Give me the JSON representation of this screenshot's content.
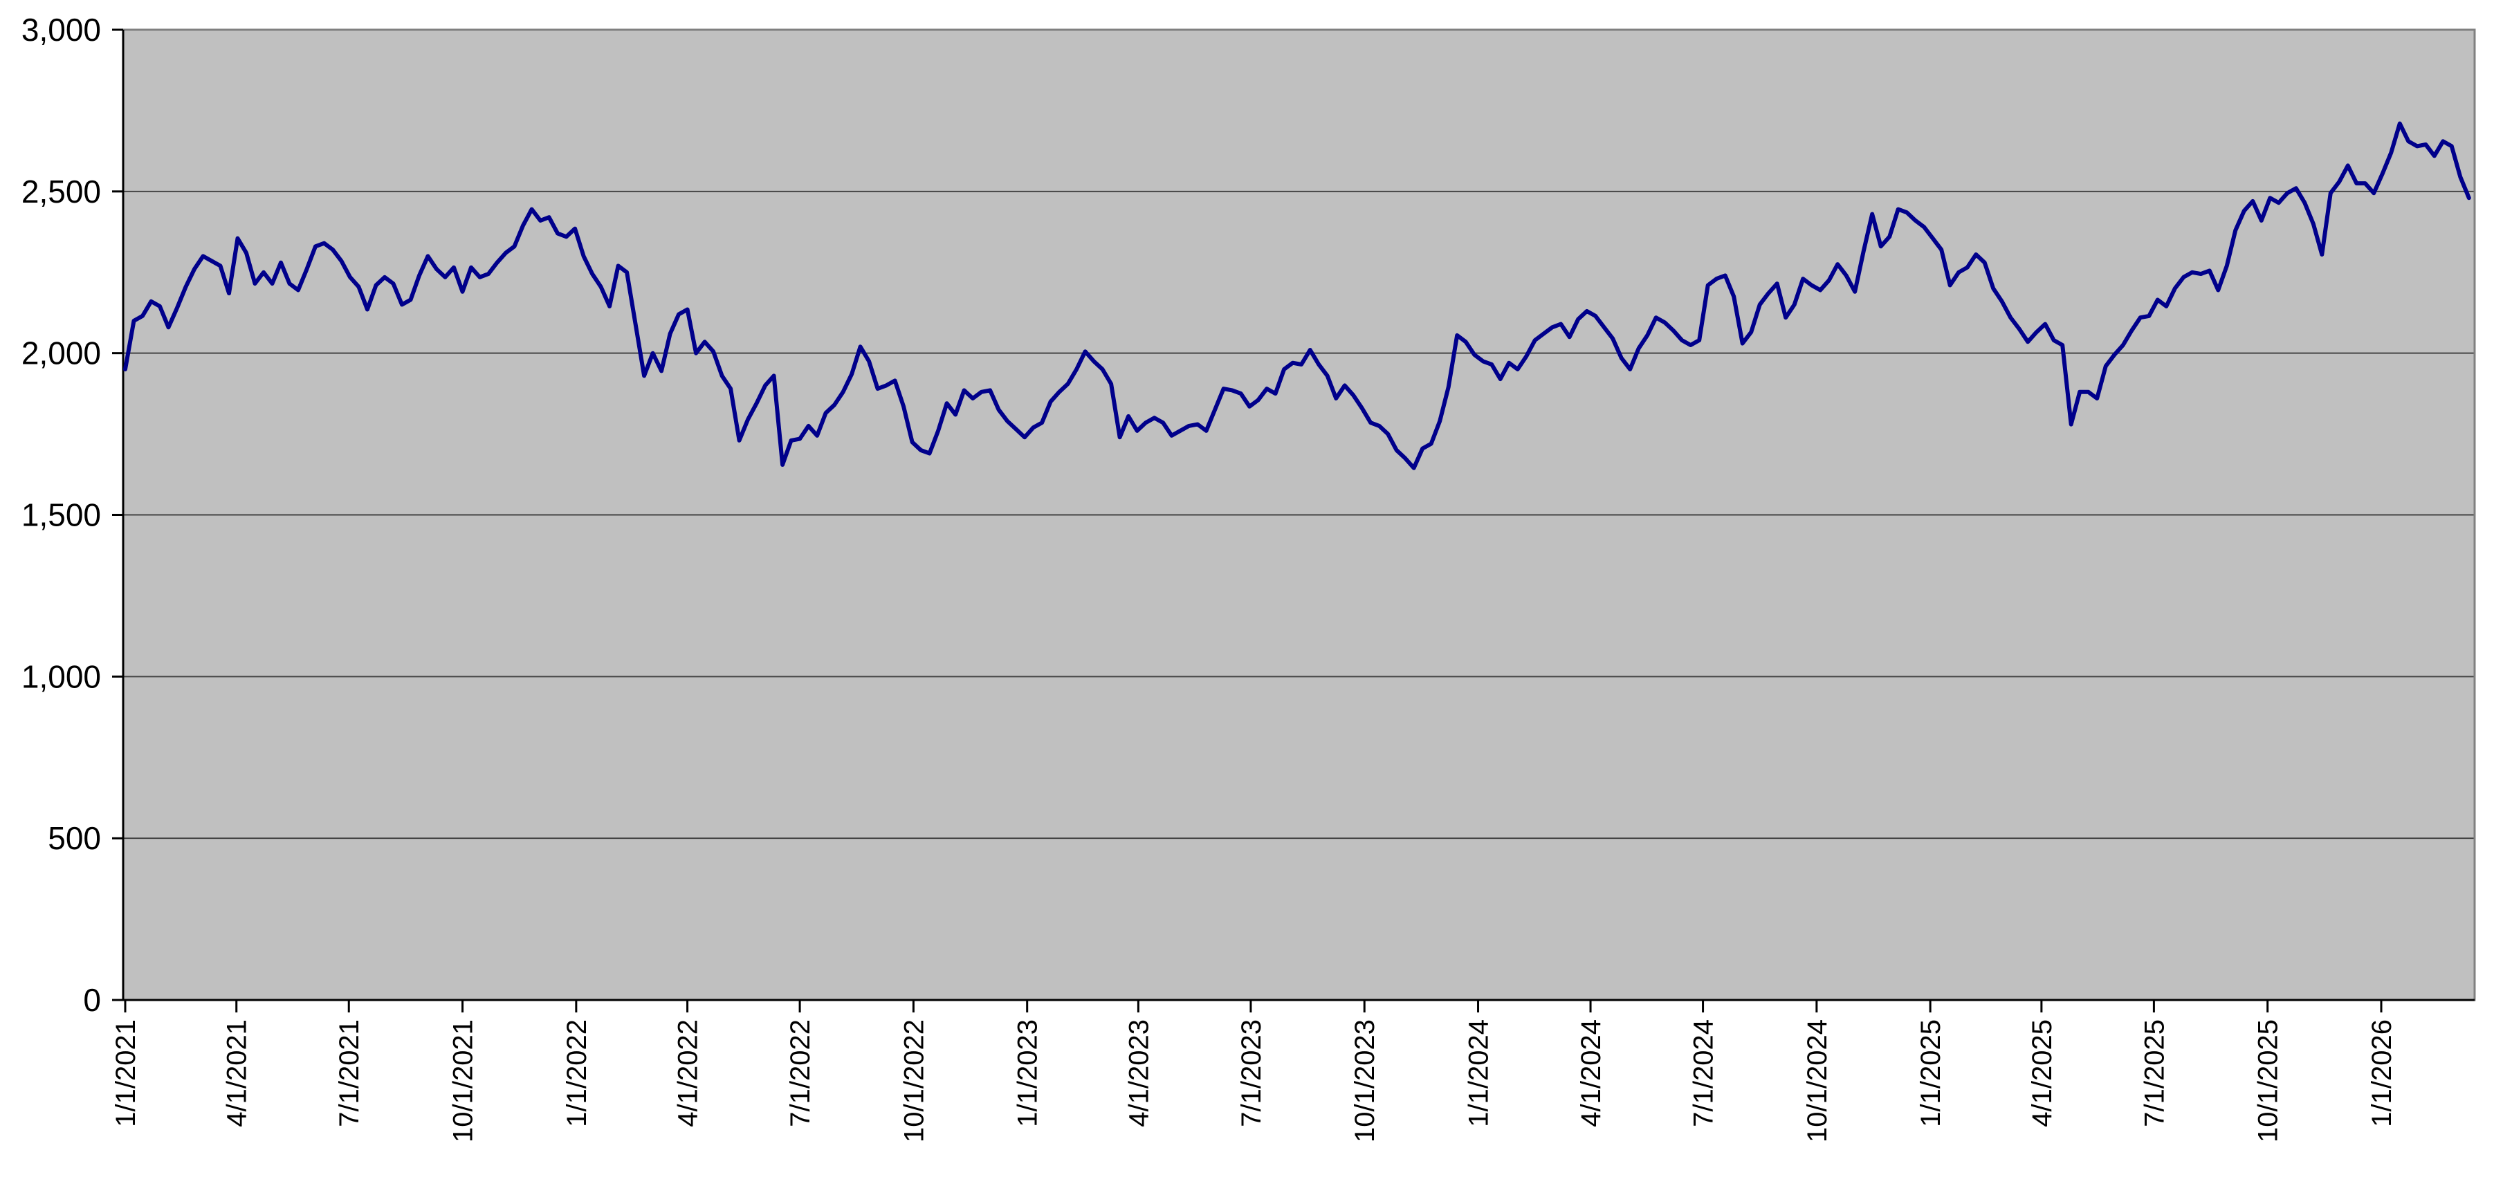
{
  "chart_data": {
    "type": "line",
    "title": "",
    "xlabel": "",
    "ylabel": "",
    "legend": "none",
    "grid": "horizontal",
    "ylim": [
      0,
      3000
    ],
    "y_tick_values": [
      0,
      500,
      1000,
      1500,
      2000,
      2500,
      3000
    ],
    "y_tick_labels": [
      "0",
      "500",
      "1,000",
      "1,500",
      "2,000",
      "2,500",
      "3,000"
    ],
    "x_tick_labels": [
      "1/1/2021",
      "4/1/2021",
      "7/1/2021",
      "10/1/2021",
      "1/1/2022",
      "4/1/2022",
      "7/1/2022",
      "10/1/2022",
      "1/1/2023",
      "4/1/2023",
      "7/1/2023",
      "10/1/2023",
      "1/1/2024",
      "4/1/2024",
      "7/1/2024",
      "10/1/2024",
      "1/1/2025",
      "4/1/2025",
      "7/1/2025",
      "10/1/2025",
      "1/1/2026"
    ],
    "x_axis_start_date": "1/1/2021",
    "x_axis_end_date": "3/18/2026",
    "sampling": {
      "start_date": "1/1/2021",
      "step_days": 7,
      "note": "weekly readings of the plotted daily series"
    },
    "values": [
      1950,
      2100,
      2115,
      2160,
      2145,
      2080,
      2140,
      2205,
      2260,
      2300,
      2285,
      2270,
      2185,
      2355,
      2310,
      2215,
      2250,
      2215,
      2280,
      2215,
      2195,
      2260,
      2330,
      2340,
      2320,
      2285,
      2235,
      2205,
      2135,
      2210,
      2235,
      2215,
      2150,
      2165,
      2240,
      2300,
      2260,
      2235,
      2265,
      2190,
      2265,
      2235,
      2245,
      2280,
      2310,
      2330,
      2395,
      2445,
      2410,
      2420,
      2370,
      2360,
      2385,
      2300,
      2245,
      2205,
      2145,
      2270,
      2250,
      2090,
      1930,
      2000,
      1945,
      2060,
      2120,
      2135,
      2000,
      2035,
      2005,
      1930,
      1890,
      1730,
      1795,
      1845,
      1900,
      1930,
      1655,
      1730,
      1735,
      1775,
      1745,
      1815,
      1840,
      1880,
      1935,
      2020,
      1975,
      1890,
      1900,
      1915,
      1835,
      1725,
      1700,
      1690,
      1760,
      1845,
      1810,
      1885,
      1860,
      1880,
      1885,
      1825,
      1790,
      1765,
      1740,
      1770,
      1785,
      1850,
      1880,
      1905,
      1950,
      2005,
      1975,
      1950,
      1905,
      1740,
      1805,
      1760,
      1785,
      1800,
      1785,
      1745,
      1760,
      1775,
      1780,
      1760,
      1825,
      1890,
      1885,
      1875,
      1835,
      1855,
      1890,
      1875,
      1950,
      1970,
      1965,
      2010,
      1965,
      1930,
      1860,
      1900,
      1870,
      1830,
      1785,
      1775,
      1750,
      1700,
      1675,
      1645,
      1705,
      1720,
      1790,
      1895,
      2055,
      2035,
      1995,
      1975,
      1965,
      1920,
      1970,
      1950,
      1990,
      2040,
      2060,
      2080,
      2090,
      2050,
      2105,
      2130,
      2115,
      2080,
      2045,
      1985,
      1950,
      2015,
      2055,
      2110,
      2095,
      2070,
      2040,
      2025,
      2040,
      2210,
      2230,
      2240,
      2175,
      2030,
      2065,
      2150,
      2185,
      2215,
      2110,
      2150,
      2230,
      2210,
      2195,
      2225,
      2275,
      2240,
      2190,
      2315,
      2430,
      2330,
      2360,
      2445,
      2435,
      2410,
      2390,
      2355,
      2320,
      2210,
      2250,
      2265,
      2305,
      2280,
      2200,
      2160,
      2110,
      2075,
      2035,
      2065,
      2090,
      2040,
      2025,
      1780,
      1880,
      1880,
      1860,
      1960,
      1995,
      2025,
      2070,
      2110,
      2115,
      2165,
      2145,
      2200,
      2235,
      2250,
      2245,
      2255,
      2195,
      2270,
      2380,
      2440,
      2470,
      2410,
      2480,
      2465,
      2495,
      2510,
      2465,
      2400,
      2305,
      2495,
      2530,
      2580,
      2525,
      2525,
      2495,
      2555,
      2620,
      2710,
      2655,
      2640,
      2645,
      2610,
      2655,
      2640,
      2545,
      2480
    ],
    "colors": {
      "line": "#00008B",
      "plot_background": "#C0C0C0",
      "plot_border": "#808080",
      "gridline": "#444444",
      "axis": "#000000",
      "text": "#000000"
    }
  }
}
